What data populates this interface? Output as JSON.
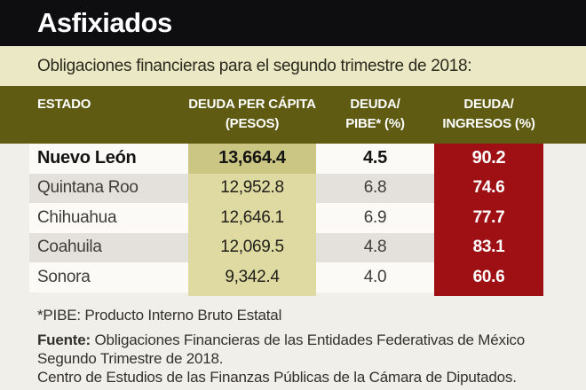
{
  "header": {
    "title": "Asfixiados"
  },
  "subtitle": "Obligaciones financieras para el segundo trimestre de 2018:",
  "table": {
    "columns": [
      {
        "line1": "ESTADO",
        "line2": ""
      },
      {
        "line1": "DEUDA PER CÁPITA",
        "line2": "(PESOS)"
      },
      {
        "line1": "DEUDA/",
        "line2": "PIBE* (%)"
      },
      {
        "line1": "DEUDA/",
        "line2": "INGRESOS (%)"
      }
    ],
    "rows": [
      {
        "estado": "Nuevo León",
        "deuda_per_capita": "13,664.4",
        "deuda_pibe": "4.5",
        "deuda_ingresos": "90.2"
      },
      {
        "estado": "Quintana Roo",
        "deuda_per_capita": "12,952.8",
        "deuda_pibe": "6.8",
        "deuda_ingresos": "74.6"
      },
      {
        "estado": "Chihuahua",
        "deuda_per_capita": "12,646.1",
        "deuda_pibe": "6.9",
        "deuda_ingresos": "77.7"
      },
      {
        "estado": "Coahuila",
        "deuda_per_capita": "12,069.5",
        "deuda_pibe": "4.8",
        "deuda_ingresos": "83.1"
      },
      {
        "estado": "Sonora",
        "deuda_per_capita": "9,342.4",
        "deuda_pibe": "4.0",
        "deuda_ingresos": "60.6"
      }
    ]
  },
  "footnote": "*PIBE: Producto Interno Bruto Estatal",
  "source": {
    "label": "Fuente:",
    "line1": "Obligaciones Financieras de las Entidades Federativas de México",
    "line2": "Segundo Trimestre de 2018.",
    "line3": "Centro de Estudios de las Finanzas Públicas de la Cámara de Diputados."
  },
  "colors": {
    "black_bar": "#0e0e11",
    "cream_bar": "#ebe9c5",
    "olive_header": "#5f5b12",
    "khaki_column": "#dedaa2",
    "khaki_column_featured": "#ccc685",
    "red_column": "#9e1014",
    "row_white": "#fbfaf7",
    "row_gray": "#e4e1dc",
    "page_background": "#f1efe9"
  },
  "chart_data": {
    "type": "table",
    "title": "Asfixiados",
    "subtitle": "Obligaciones financieras para el segundo trimestre de 2018",
    "columns": [
      "ESTADO",
      "DEUDA PER CÁPITA (PESOS)",
      "DEUDA/PIBE* (%)",
      "DEUDA/INGRESOS (%)"
    ],
    "rows": [
      [
        "Nuevo León",
        13664.4,
        4.5,
        90.2
      ],
      [
        "Quintana Roo",
        12952.8,
        6.8,
        74.6
      ],
      [
        "Chihuahua",
        12646.1,
        6.9,
        77.7
      ],
      [
        "Coahuila",
        12069.5,
        4.8,
        83.1
      ],
      [
        "Sonora",
        9342.4,
        4.0,
        60.6
      ]
    ],
    "notes": [
      "*PIBE: Producto Interno Bruto Estatal"
    ],
    "source": "Obligaciones Financieras de las Entidades Federativas de México Segundo Trimestre de 2018. Centro de Estudios de las Finanzas Públicas de la Cámara de Diputados."
  }
}
